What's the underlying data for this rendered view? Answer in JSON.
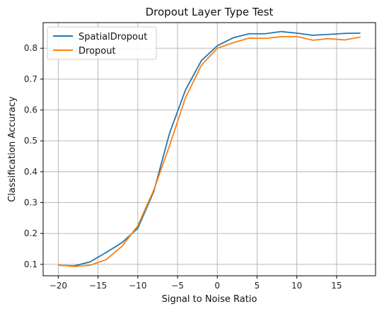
{
  "chart_data": {
    "type": "line",
    "title": "Dropout Layer Type Test",
    "xlabel": "Signal to Noise Ratio",
    "ylabel": "Classification Accuracy",
    "xlim": [
      -21.9,
      19.9
    ],
    "ylim": [
      0.063,
      0.883
    ],
    "xticks": [
      -20,
      -15,
      -10,
      -5,
      0,
      5,
      10,
      15
    ],
    "yticks": [
      0.1,
      0.2,
      0.3,
      0.4,
      0.5,
      0.6,
      0.7,
      0.8
    ],
    "grid": true,
    "legend_position": "upper-left",
    "x": [
      -20,
      -18,
      -16,
      -14,
      -12,
      -10,
      -8,
      -6,
      -4,
      -2,
      0,
      2,
      4,
      6,
      8,
      10,
      12,
      14,
      16,
      18
    ],
    "series": [
      {
        "name": "SpatialDropout",
        "color": "#1f77b4",
        "values": [
          0.097,
          0.095,
          0.108,
          0.138,
          0.17,
          0.217,
          0.335,
          0.525,
          0.665,
          0.76,
          0.808,
          0.834,
          0.847,
          0.847,
          0.854,
          0.849,
          0.842,
          0.845,
          0.848,
          0.849
        ]
      },
      {
        "name": "Dropout",
        "color": "#ff7f0e",
        "values": [
          0.098,
          0.093,
          0.097,
          0.115,
          0.158,
          0.225,
          0.34,
          0.485,
          0.64,
          0.745,
          0.8,
          0.818,
          0.833,
          0.832,
          0.837,
          0.838,
          0.826,
          0.831,
          0.827,
          0.836
        ]
      }
    ]
  }
}
